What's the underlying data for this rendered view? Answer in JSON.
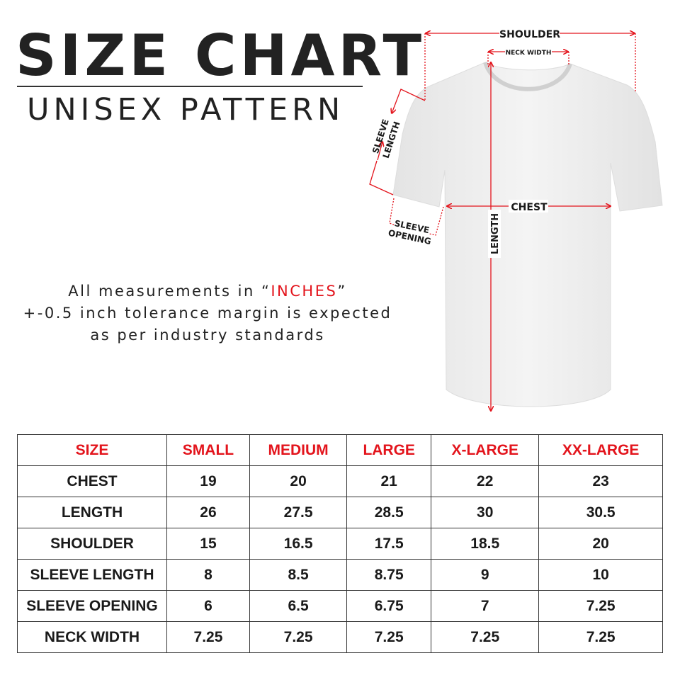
{
  "header": {
    "title": "SIZE CHART",
    "subtitle": "UNISEX PATTERN"
  },
  "note": {
    "line1_prefix": "All measurements in “",
    "line1_unit": "INCHES",
    "line1_suffix": "”",
    "line2": "+-0.5 inch tolerance margin is expected",
    "line3": "as per industry standards"
  },
  "diagram": {
    "labels": {
      "shoulder": "SHOULDER",
      "neck_width": "NECK WIDTH",
      "sleeve_length_1": "SLEEVE",
      "sleeve_length_2": "LENGTH",
      "sleeve_opening_1": "SLEEVE",
      "sleeve_opening_2": "OPENING",
      "chest": "CHEST",
      "length": "LENGTH"
    }
  },
  "table": {
    "headers": [
      "SIZE",
      "SMALL",
      "MEDIUM",
      "LARGE",
      "X-LARGE",
      "XX-LARGE"
    ],
    "rows": [
      [
        "CHEST",
        "19",
        "20",
        "21",
        "22",
        "23"
      ],
      [
        "LENGTH",
        "26",
        "27.5",
        "28.5",
        "30",
        "30.5"
      ],
      [
        "SHOULDER",
        "15",
        "16.5",
        "17.5",
        "18.5",
        "20"
      ],
      [
        "SLEEVE LENGTH",
        "8",
        "8.5",
        "8.75",
        "9",
        "10"
      ],
      [
        "SLEEVE OPENING",
        "6",
        "6.5",
        "6.75",
        "7",
        "7.25"
      ],
      [
        "NECK WIDTH",
        "7.25",
        "7.25",
        "7.25",
        "7.25",
        "7.25"
      ]
    ]
  },
  "colors": {
    "accent": "#e3141c",
    "text": "#1a1a1a"
  }
}
